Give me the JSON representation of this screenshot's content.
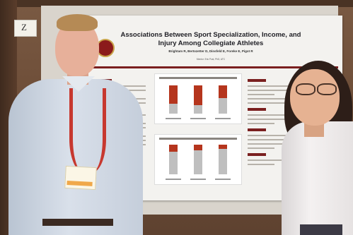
{
  "poster": {
    "title_line1": "Associations Between Sport Specialization, Income, and",
    "title_line2": "Injury Among Collegiate Athletes",
    "authors": "Brightam R, Bertozetter D, Dinsfeld E, Foreke E, Pigot R",
    "sub": "Mentor: Eric Post, PhD, ATC"
  },
  "card": {
    "letter": "Z"
  }
}
